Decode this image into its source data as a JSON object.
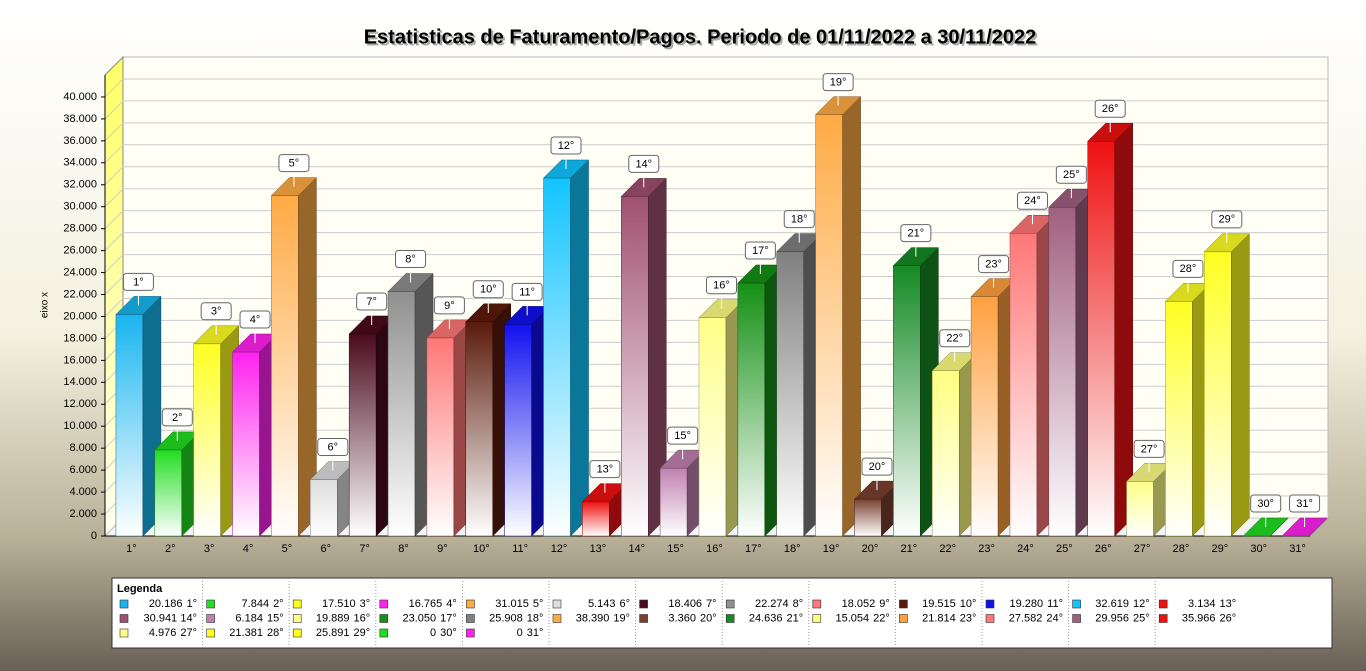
{
  "chart_data": {
    "type": "bar",
    "title": "Estatisticas de Faturamento/Pagos. Periodo de 01/11/2022 a 30/11/2022",
    "y_label": "eixo x",
    "legend_title": "Legenda",
    "categories": [
      "1°",
      "2°",
      "3°",
      "4°",
      "5°",
      "6°",
      "7°",
      "8°",
      "9°",
      "10°",
      "11°",
      "12°",
      "13°",
      "14°",
      "15°",
      "16°",
      "17°",
      "18°",
      "19°",
      "20°",
      "21°",
      "22°",
      "23°",
      "24°",
      "25°",
      "26°",
      "27°",
      "28°",
      "29°",
      "30°",
      "31°"
    ],
    "values": [
      20186,
      7844,
      17510,
      16765,
      31015,
      5143,
      18406,
      22274,
      18052,
      19515,
      19280,
      32619,
      3134,
      30941,
      6184,
      19889,
      23050,
      25908,
      38390,
      3360,
      24636,
      15054,
      21814,
      27582,
      29956,
      35966,
      4976,
      21381,
      25891,
      0,
      0
    ],
    "value_labels": [
      "20.186",
      "7.844",
      "17.510",
      "16.765",
      "31.015",
      "5.143",
      "18.406",
      "22.274",
      "18.052",
      "19.515",
      "19.280",
      "32.619",
      "3.134",
      "30.941",
      "6.184",
      "19.889",
      "23.050",
      "25.908",
      "38.390",
      "3.360",
      "24.636",
      "15.054",
      "21.814",
      "27.582",
      "29.956",
      "35.966",
      "4.976",
      "21.381",
      "25.891",
      "0",
      "0"
    ],
    "colors": [
      "#19b5f0",
      "#22dd22",
      "#ffff22",
      "#ff22ee",
      "#ffaa44",
      "#dddddd",
      "#4a0a1e",
      "#909090",
      "#ff7777",
      "#5a1a0a",
      "#1111ee",
      "#11c4ff",
      "#ee1111",
      "#a05070",
      "#c080b0",
      "#ffff88",
      "#159015",
      "#808080",
      "#ffaa44",
      "#7a4030",
      "#158a25",
      "#ffff80",
      "#ffa040",
      "#ff7777",
      "#a06080",
      "#ee1111",
      "#ffff88",
      "#ffff22",
      "#ffff22",
      "#22dd22",
      "#ff22ee"
    ],
    "ylim": [
      0,
      42000
    ],
    "yticks": [
      0,
      {
        "value": 2000,
        "label": "2.000"
      },
      {
        "value": 4000,
        "label": "4.000"
      },
      {
        "value": 6000,
        "label": "6.000"
      },
      {
        "value": 8000,
        "label": "8.000"
      },
      {
        "value": 10000,
        "label": "10.000"
      },
      {
        "value": 12000,
        "label": "12.000"
      },
      {
        "value": 14000,
        "label": "14.000"
      },
      {
        "value": 16000,
        "label": "16.000"
      },
      {
        "value": 18000,
        "label": "18.000"
      },
      {
        "value": 20000,
        "label": "20.000"
      },
      {
        "value": 22000,
        "label": "22.000"
      },
      {
        "value": 24000,
        "label": "24.000"
      },
      {
        "value": 26000,
        "label": "26.000"
      },
      {
        "value": 28000,
        "label": "28.000"
      },
      {
        "value": 30000,
        "label": "30.000"
      },
      {
        "value": 32000,
        "label": "32.000"
      },
      {
        "value": 34000,
        "label": "34.000"
      },
      {
        "value": 36000,
        "label": "36.000"
      },
      {
        "value": 38000,
        "label": "38.000"
      },
      {
        "value": 40000,
        "label": "40.000"
      }
    ],
    "grid": true
  }
}
